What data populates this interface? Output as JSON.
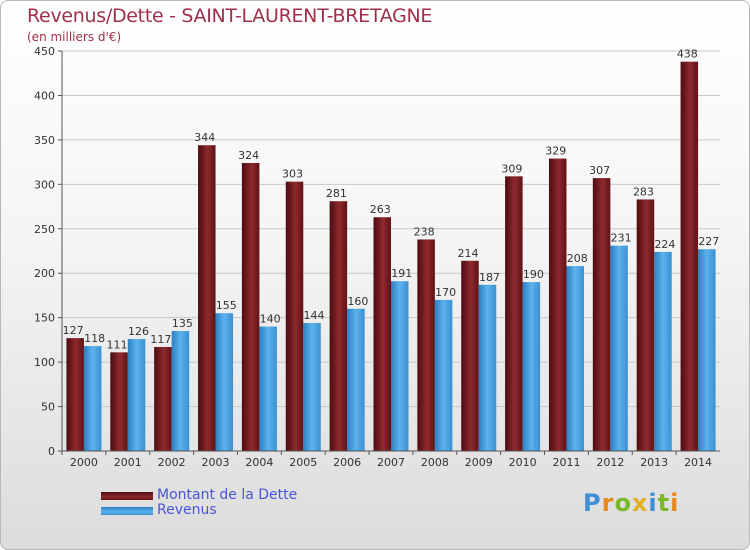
{
  "header": {
    "title": "Revenus/Dette - SAINT-LAURENT-BRETAGNE",
    "subtitle": "(en milliers d'€)"
  },
  "colors": {
    "debt": "#7a1a20",
    "revenue": "#4aa3e3",
    "title": "#a0304a",
    "legend_text": "#4b55d8"
  },
  "legend": {
    "items": [
      {
        "label": "Montant de la Dette",
        "color": "#7a1a20"
      },
      {
        "label": "Revenus",
        "color": "#4aa3e3"
      }
    ]
  },
  "logo": {
    "text": "Proxiti"
  },
  "chart_data": {
    "type": "bar",
    "title": "Revenus/Dette - SAINT-LAURENT-BRETAGNE",
    "subtitle": "(en milliers d'€)",
    "xlabel": "",
    "ylabel": "",
    "categories": [
      "2000",
      "2001",
      "2002",
      "2003",
      "2004",
      "2005",
      "2006",
      "2007",
      "2008",
      "2009",
      "2010",
      "2011",
      "2012",
      "2013",
      "2014"
    ],
    "series": [
      {
        "name": "Montant de la Dette",
        "values": [
          127,
          111,
          117,
          344,
          324,
          303,
          281,
          263,
          238,
          214,
          309,
          329,
          307,
          283,
          438
        ]
      },
      {
        "name": "Revenus",
        "values": [
          118,
          126,
          135,
          155,
          140,
          144,
          160,
          191,
          170,
          187,
          190,
          208,
          231,
          224,
          227
        ]
      }
    ],
    "ylim": [
      0,
      450
    ],
    "yticks": [
      0,
      50,
      100,
      150,
      200,
      250,
      300,
      350,
      400,
      450
    ],
    "grid": true,
    "legend_position": "bottom-left"
  }
}
